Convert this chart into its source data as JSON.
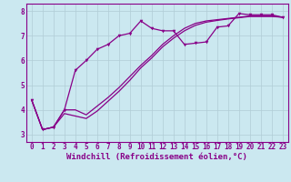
{
  "background_color": "#cbe8f0",
  "grid_color": "#b0ccd5",
  "line_color": "#880088",
  "marker_color": "#880088",
  "xlabel": "Windchill (Refroidissement éolien,°C)",
  "xlim": [
    -0.5,
    23.5
  ],
  "ylim": [
    2.7,
    8.3
  ],
  "yticks": [
    3,
    4,
    5,
    6,
    7,
    8
  ],
  "xticks": [
    0,
    1,
    2,
    3,
    4,
    5,
    6,
    7,
    8,
    9,
    10,
    11,
    12,
    13,
    14,
    15,
    16,
    17,
    18,
    19,
    20,
    21,
    22,
    23
  ],
  "series": [
    {
      "x": [
        0,
        1,
        2,
        3,
        4,
        5,
        6,
        7,
        8,
        9,
        10,
        11,
        12,
        13,
        14,
        15,
        16,
        17,
        18,
        19,
        20,
        21,
        22,
        23
      ],
      "y": [
        4.4,
        3.2,
        3.3,
        4.0,
        4.0,
        3.8,
        4.15,
        4.5,
        4.9,
        5.35,
        5.8,
        6.2,
        6.65,
        7.0,
        7.3,
        7.5,
        7.6,
        7.65,
        7.7,
        7.75,
        7.8,
        7.8,
        7.8,
        7.75
      ],
      "has_markers": false,
      "linewidth": 0.9
    },
    {
      "x": [
        0,
        1,
        2,
        3,
        4,
        5,
        6,
        7,
        8,
        9,
        10,
        11,
        12,
        13,
        14,
        15,
        16,
        17,
        18,
        19,
        20,
        21,
        22,
        23
      ],
      "y": [
        4.4,
        3.2,
        3.3,
        4.0,
        5.6,
        6.0,
        6.45,
        6.65,
        7.0,
        7.1,
        7.6,
        7.3,
        7.2,
        7.2,
        6.65,
        6.7,
        6.75,
        7.35,
        7.4,
        7.9,
        7.85,
        7.85,
        7.85,
        7.75
      ],
      "has_markers": true,
      "linewidth": 0.9
    },
    {
      "x": [
        0,
        1,
        2,
        3,
        4,
        5,
        6,
        7,
        8,
        9,
        10,
        11,
        12,
        13,
        14,
        15,
        16,
        17,
        18,
        19,
        20,
        21,
        22,
        23
      ],
      "y": [
        4.4,
        3.2,
        3.3,
        3.85,
        3.75,
        3.65,
        3.95,
        4.35,
        4.75,
        5.2,
        5.7,
        6.1,
        6.55,
        6.9,
        7.2,
        7.42,
        7.55,
        7.62,
        7.68,
        7.73,
        7.78,
        7.78,
        7.78,
        7.75
      ],
      "has_markers": false,
      "linewidth": 0.9
    }
  ],
  "tick_fontsize": 5.5,
  "xlabel_fontsize": 6.5,
  "font_family": "monospace"
}
